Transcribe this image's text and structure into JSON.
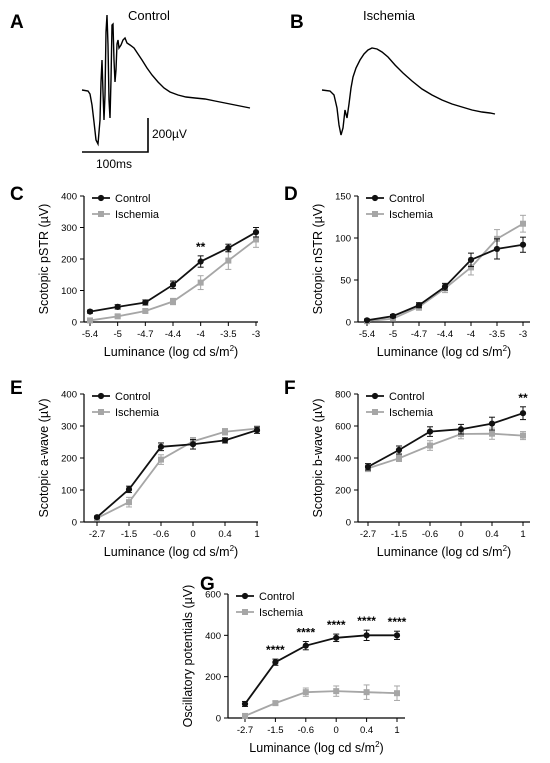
{
  "panels": {
    "A": {
      "label": "A",
      "title": "Control"
    },
    "B": {
      "label": "B",
      "title": "Ischemia"
    },
    "scale_bar": {
      "amplitude": "200µV",
      "time": "100ms"
    }
  },
  "colors": {
    "control": "#111111",
    "ischemia": "#a6a6a6"
  },
  "chart_data": [
    {
      "panel": "C",
      "type": "line",
      "xlabel": "Luminance (log cd s/m2)",
      "ylabel": "Scotopic pSTR (µV)",
      "x_ticks": [
        "-5.4",
        "-5",
        "-4.7",
        "-4.4",
        "-4",
        "-3.5",
        "-3"
      ],
      "ylim": [
        0,
        400
      ],
      "y_ticks": [
        0,
        100,
        200,
        300,
        400
      ],
      "legend": "top-left",
      "series": [
        {
          "name": "Control",
          "values": [
            33,
            48,
            62,
            118,
            192,
            235,
            285
          ],
          "errors": [
            5,
            7,
            8,
            12,
            18,
            12,
            15
          ]
        },
        {
          "name": "Ischemia",
          "values": [
            5,
            18,
            35,
            65,
            125,
            195,
            262
          ],
          "errors": [
            3,
            5,
            6,
            10,
            22,
            28,
            25
          ]
        }
      ],
      "annotations": [
        {
          "index": 4,
          "text": "**"
        }
      ]
    },
    {
      "panel": "D",
      "type": "line",
      "xlabel": "Luminance (log cd s/m2)",
      "ylabel": "Scotopic nSTR (µV)",
      "x_ticks": [
        "-5.4",
        "-5",
        "-4.7",
        "-4.4",
        "-4",
        "-3.5",
        "-3"
      ],
      "ylim": [
        0,
        150
      ],
      "y_ticks": [
        0,
        50,
        100,
        150
      ],
      "legend": "top-left",
      "series": [
        {
          "name": "Control",
          "values": [
            2,
            7,
            20,
            42,
            74,
            87,
            92
          ],
          "errors": [
            1,
            2,
            3,
            4,
            8,
            12,
            9
          ]
        },
        {
          "name": "Ischemia",
          "values": [
            1,
            4,
            18,
            40,
            65,
            99,
            117
          ],
          "errors": [
            1,
            2,
            4,
            5,
            9,
            11,
            10
          ]
        }
      ],
      "annotations": []
    },
    {
      "panel": "E",
      "type": "line",
      "xlabel": "Luminance (log cd s/m2)",
      "ylabel": "Scotopic a-wave (µV)",
      "x_ticks": [
        "-2.7",
        "-1.5",
        "-0.6",
        "0",
        "0.4",
        "1"
      ],
      "ylim": [
        0,
        400
      ],
      "y_ticks": [
        0,
        100,
        200,
        300,
        400
      ],
      "legend": "top-left",
      "series": [
        {
          "name": "Control",
          "values": [
            15,
            102,
            235,
            243,
            255,
            287
          ],
          "errors": [
            3,
            10,
            12,
            15,
            8,
            10
          ]
        },
        {
          "name": "Ischemia",
          "values": [
            12,
            62,
            195,
            252,
            282,
            292
          ],
          "errors": [
            3,
            15,
            15,
            12,
            10,
            8
          ]
        }
      ],
      "annotations": []
    },
    {
      "panel": "F",
      "type": "line",
      "xlabel": "Luminance (log cd s/m2)",
      "ylabel": "Scotopic b-wave (µV)",
      "x_ticks": [
        "-2.7",
        "-1.5",
        "-0.6",
        "0",
        "0.4",
        "1"
      ],
      "ylim": [
        0,
        800
      ],
      "y_ticks": [
        0,
        200,
        400,
        600,
        800
      ],
      "legend": "top-left",
      "series": [
        {
          "name": "Control",
          "values": [
            345,
            450,
            565,
            580,
            615,
            680
          ],
          "errors": [
            20,
            25,
            30,
            30,
            40,
            40
          ]
        },
        {
          "name": "Ischemia",
          "values": [
            335,
            398,
            478,
            550,
            552,
            540
          ],
          "errors": [
            20,
            20,
            30,
            30,
            35,
            25
          ]
        }
      ],
      "annotations": [
        {
          "index": 5,
          "text": "**"
        }
      ]
    },
    {
      "panel": "G",
      "type": "line",
      "xlabel": "Luminance (log cd s/m2)",
      "ylabel": "Oscillatory potentials (µV)",
      "x_ticks": [
        "-2.7",
        "-1.5",
        "-0.6",
        "0",
        "0.4",
        "1"
      ],
      "ylim": [
        0,
        600
      ],
      "y_ticks": [
        0,
        200,
        400,
        600
      ],
      "legend": "top-left",
      "series": [
        {
          "name": "Control",
          "values": [
            68,
            270,
            350,
            388,
            400,
            400
          ],
          "errors": [
            12,
            15,
            20,
            18,
            25,
            20
          ]
        },
        {
          "name": "Ischemia",
          "values": [
            10,
            72,
            125,
            130,
            125,
            120
          ],
          "errors": [
            5,
            10,
            20,
            25,
            35,
            35
          ]
        }
      ],
      "annotations": [
        {
          "index": 1,
          "text": "****"
        },
        {
          "index": 2,
          "text": "****"
        },
        {
          "index": 3,
          "text": "****"
        },
        {
          "index": 4,
          "text": "****"
        },
        {
          "index": 5,
          "text": "****"
        }
      ]
    }
  ]
}
